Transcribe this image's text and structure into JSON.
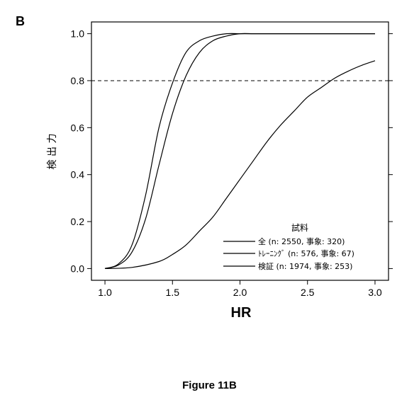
{
  "panel_label": "B",
  "figure_caption": "Figure 11B",
  "chart_data": {
    "type": "line",
    "xlabel": "HR",
    "ylabel": "検 出 力",
    "xlim": [
      0.9,
      3.1
    ],
    "ylim": [
      -0.05,
      1.05
    ],
    "xticks": [
      1.0,
      1.5,
      2.0,
      2.5,
      3.0
    ],
    "xtick_labels": [
      "1.0",
      "1.5",
      "2.0",
      "2.5",
      "3.0"
    ],
    "yticks": [
      0.0,
      0.2,
      0.4,
      0.6,
      0.8,
      1.0
    ],
    "ytick_labels": [
      "0.0",
      "0.2",
      "0.4",
      "0.6",
      "0.8",
      "1.0"
    ],
    "reference_line": {
      "y": 0.8,
      "style": "dashed"
    },
    "legend": {
      "title": "試料",
      "position": "bottom-right",
      "entries": [
        "全 (n: 2550, 事象: 320)",
        "ﾄﾚｰﾆﾝｸﾞ (n: 576, 事象: 67)",
        "検証 (n: 1974, 事象: 253)"
      ]
    },
    "series": [
      {
        "name": "全 (n: 2550, 事象: 320)",
        "color": "#000000",
        "x": [
          1.0,
          1.1,
          1.2,
          1.3,
          1.4,
          1.5,
          1.6,
          1.7,
          1.8,
          1.9,
          2.0,
          2.1,
          2.2,
          2.4,
          2.6,
          2.8,
          3.0
        ],
        "y": [
          0.0,
          0.02,
          0.1,
          0.31,
          0.6,
          0.79,
          0.92,
          0.97,
          0.99,
          1.0,
          1.0,
          1.0,
          1.0,
          1.0,
          1.0,
          1.0,
          1.0
        ]
      },
      {
        "name": "ﾄﾚｰﾆﾝｸﾞ (n: 576, 事象: 67)",
        "color": "#000000",
        "x": [
          1.0,
          1.1,
          1.2,
          1.3,
          1.4,
          1.5,
          1.6,
          1.7,
          1.8,
          1.9,
          2.0,
          2.1,
          2.2,
          2.4,
          2.6,
          2.8,
          3.0
        ],
        "y": [
          0.0,
          0.015,
          0.07,
          0.21,
          0.44,
          0.66,
          0.82,
          0.92,
          0.97,
          0.99,
          1.0,
          1.0,
          1.0,
          1.0,
          1.0,
          1.0,
          1.0
        ]
      },
      {
        "name": "検証 (n: 1974, 事象: 253)",
        "color": "#000000",
        "x": [
          1.0,
          1.2,
          1.4,
          1.5,
          1.6,
          1.7,
          1.8,
          1.9,
          2.0,
          2.1,
          2.2,
          2.3,
          2.4,
          2.5,
          2.6,
          2.7,
          2.8,
          2.9,
          3.0
        ],
        "y": [
          0.0,
          0.005,
          0.03,
          0.06,
          0.1,
          0.16,
          0.22,
          0.3,
          0.38,
          0.46,
          0.54,
          0.61,
          0.67,
          0.73,
          0.77,
          0.81,
          0.84,
          0.865,
          0.885
        ]
      }
    ]
  }
}
